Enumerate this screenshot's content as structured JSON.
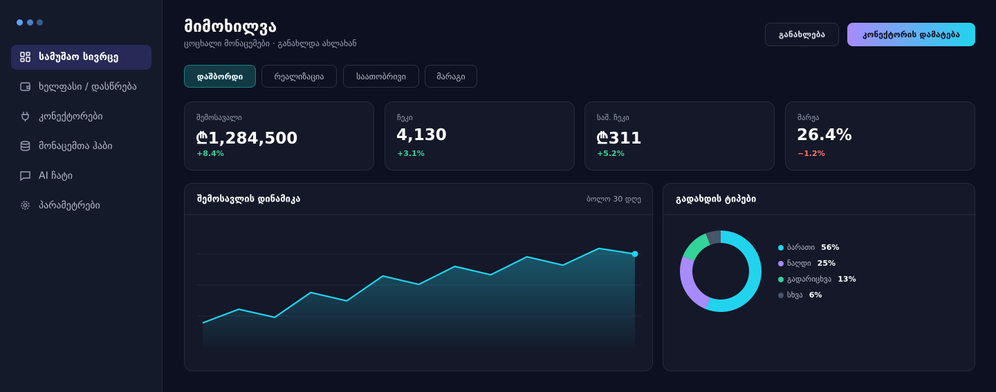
{
  "sidebar": {
    "nav": [
      "სამუშაო სივრცე",
      "ხელფასი / დასწრება",
      "კონექტორები",
      "მონაცემთა ჰაბი",
      "AI ჩატი",
      "პარამეტრები"
    ]
  },
  "header": {
    "title": "მიმოხილვა",
    "subtitle": "ცოცხალი მონაცემები · განახლდა ახლახან",
    "buttons": [
      "განახლება",
      "კონექტორის დამატება"
    ]
  },
  "tabs": [
    "დაშბორდი",
    "რეალიზაცია",
    "საათობრივი",
    "მარაგი"
  ],
  "kpis": [
    {
      "label": "შემოსავალი",
      "value": "₾1,284,500",
      "change": "+8.4%"
    },
    {
      "label": "ჩეკი",
      "value": "4,130",
      "change": "+3.1%"
    },
    {
      "label": "საშ. ჩეკი",
      "value": "₾311",
      "change": "+5.2%"
    },
    {
      "label": "მარჟა",
      "value": "26.4%",
      "change": "−1.2%"
    }
  ],
  "chart_data": [
    {
      "type": "line",
      "title": "შემოსავლის დინამიკა",
      "subtitle": "ბოლო 30 დღე",
      "categories": [
        null,
        null,
        null,
        null,
        null,
        null,
        null,
        null,
        null,
        null,
        null,
        null,
        null
      ],
      "series": [
        {
          "color": "#22d3ee",
          "values": [
            0.78,
            1.22,
            0.96,
            1.76,
            1.49,
            2.29,
            2.02,
            2.6,
            2.33,
            2.91,
            2.64,
            3.18,
            3.0
          ]
        }
      ],
      "ylim": [
        0,
        4
      ],
      "yticks": [
        1,
        2,
        3
      ],
      "grid": true
    },
    {
      "type": "pie",
      "title": "გადახდის ტიპები",
      "categories": [
        "ბარათი",
        "ნაღდი",
        "გადარიცხვა",
        "სხვა"
      ],
      "values": [
        56,
        25,
        13,
        6
      ],
      "value_labels": [
        "56%",
        "25%",
        "13%",
        "6%"
      ],
      "colors": [
        "#22d3ee",
        "#a78bfa",
        "#34d399",
        "#475569"
      ]
    }
  ]
}
